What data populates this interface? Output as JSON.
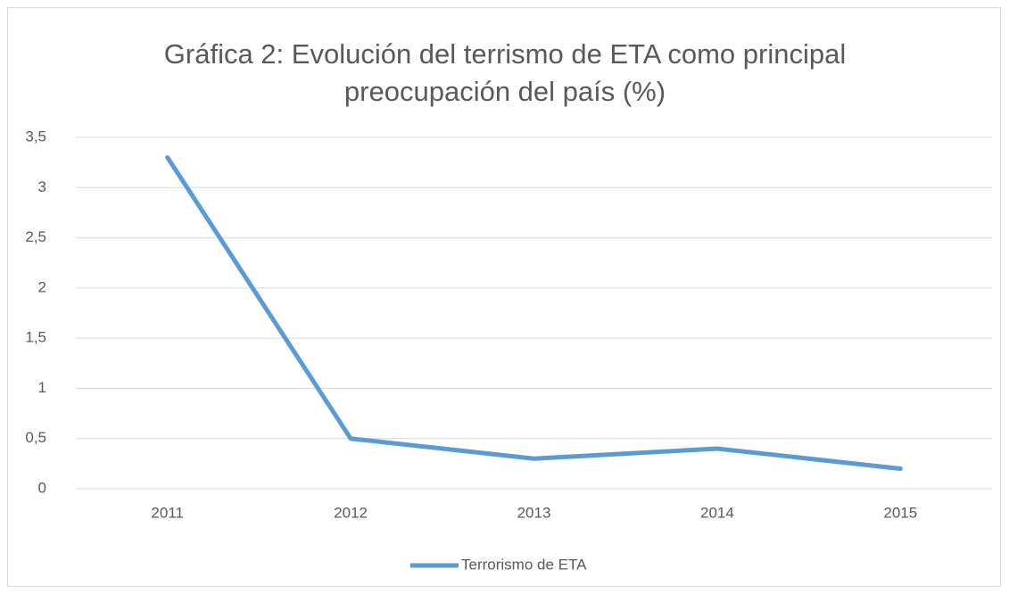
{
  "chart_data": {
    "type": "line",
    "title": "Gráfica 2: Evolución del terrismo de ETA como principal preocupación del país (%)",
    "categories": [
      "2011",
      "2012",
      "2013",
      "2014",
      "2015"
    ],
    "series": [
      {
        "name": "Terrorismo de ETA",
        "color": "#5b9bd5",
        "values": [
          3.3,
          0.5,
          0.3,
          0.4,
          0.2
        ]
      }
    ],
    "ylim": [
      0,
      3.5
    ],
    "yticks": [
      0,
      {
        "value": 0.5,
        "label": "0,5"
      },
      1,
      {
        "value": 1.5,
        "label": "1,5"
      },
      2,
      {
        "value": 2.5,
        "label": "2,5"
      },
      3,
      {
        "value": 3.5,
        "label": "3,5"
      }
    ],
    "grid": true,
    "legend": "bottom"
  }
}
